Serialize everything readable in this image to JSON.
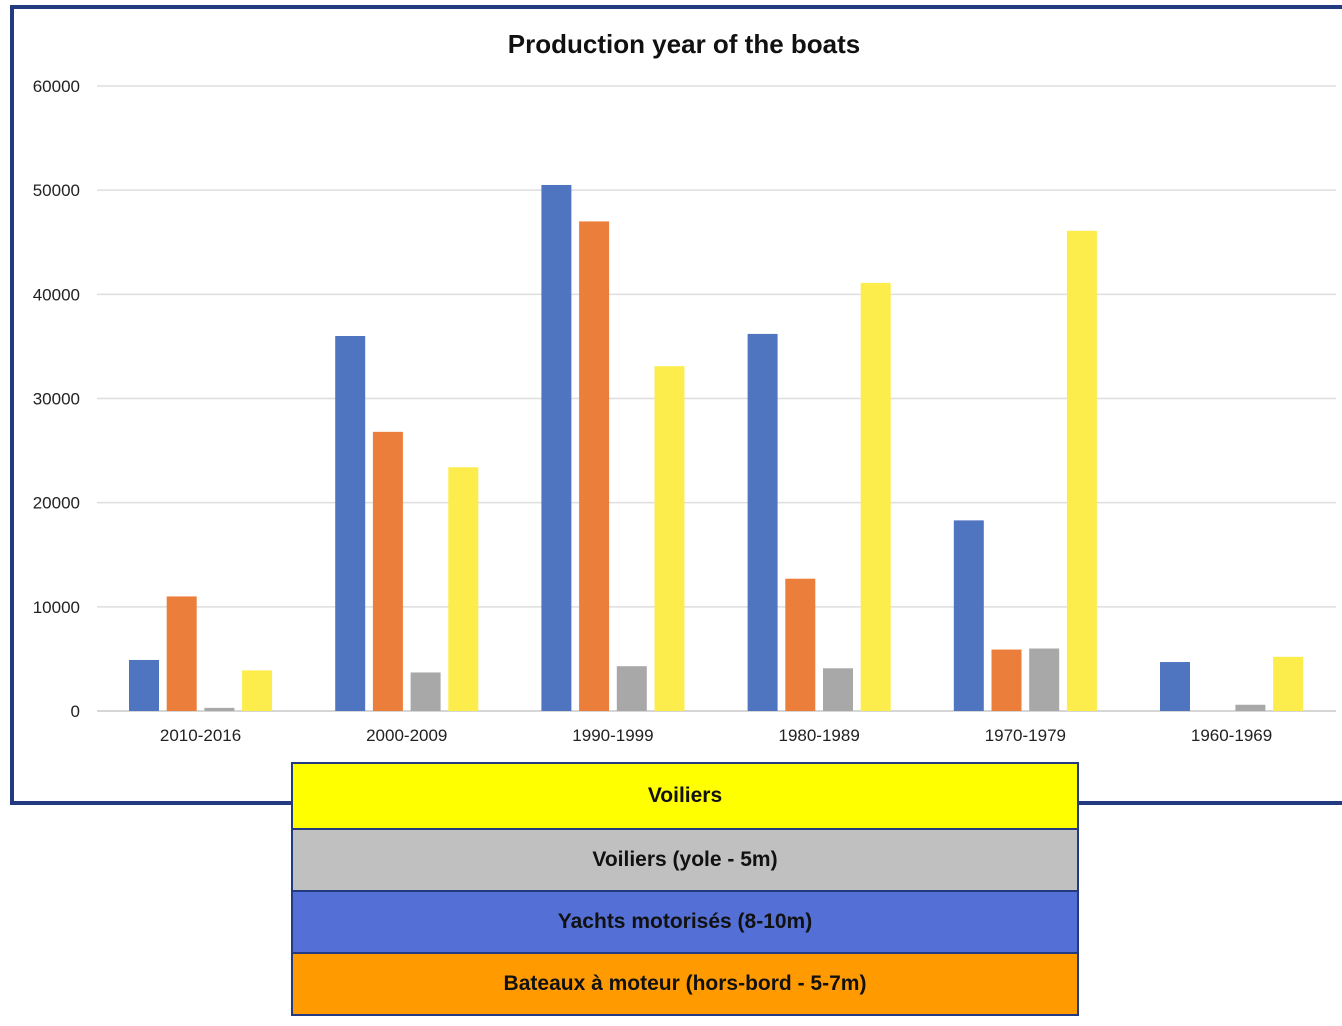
{
  "chart_data": {
    "type": "bar",
    "title": "Production year of the boats",
    "xlabel": "",
    "ylabel": "",
    "ylim": [
      0,
      60000
    ],
    "yticks": [
      "0",
      "10000",
      "20000",
      "30000",
      "40000",
      "50000",
      "60000"
    ],
    "categories": [
      "2010-2016",
      "2000-2009",
      "1990-1999",
      "1980-1989",
      "1970-1979",
      "1960-1969"
    ],
    "grid": true,
    "series": [
      {
        "name": "Yachts motorisés (8-10m)",
        "color": "#4f75c0",
        "values": [
          4900,
          36000,
          50500,
          36200,
          18300,
          4700
        ]
      },
      {
        "name": "Bateaux à moteur (hors-bord - 5-7m)",
        "color": "#ec7e3b",
        "values": [
          11000,
          26800,
          47000,
          12700,
          5900,
          0
        ]
      },
      {
        "name": "Voiliers (yole - 5m)",
        "color": "#a8a8a8",
        "values": [
          300,
          3700,
          4300,
          4100,
          6000,
          600
        ]
      },
      {
        "name": "Voiliers",
        "color": "#fcec4c",
        "values": [
          3900,
          23400,
          33100,
          41100,
          46100,
          5200
        ]
      }
    ]
  },
  "legend": {
    "items": [
      {
        "label": "Voiliers",
        "color": "#ffff00"
      },
      {
        "label": "Voiliers (yole - 5m)",
        "color": "#c0c0c0"
      },
      {
        "label": "Yachts motorisés (8-10m)",
        "color": "#5470d6"
      },
      {
        "label": "Bateaux à moteur (hors-bord - 5-7m)",
        "color": "#ff9a00"
      }
    ]
  }
}
